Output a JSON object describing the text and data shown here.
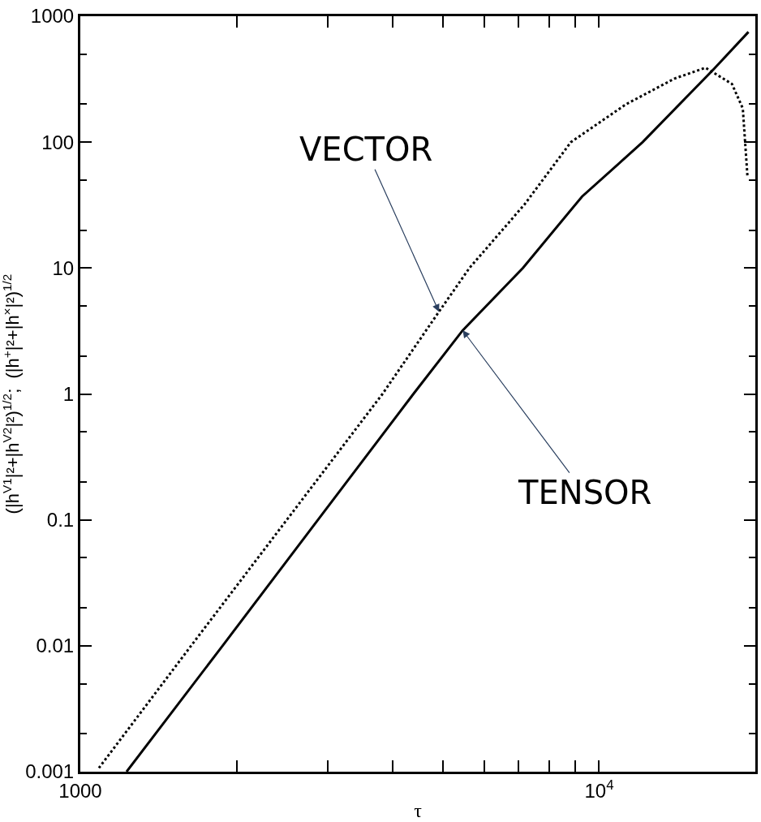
{
  "chart_data": {
    "type": "line",
    "xlabel": "τ",
    "ylabel": "(|h$^{V1}$|²+|h$^{V2}$|²)$^{1/2}$;  (|h$^{+}$|²+|h$^{×}$|²)$^{1/2}$",
    "log": "xy",
    "marker": "none",
    "xlim": [
      1000,
      20000
    ],
    "ylim": [
      0.001,
      1000
    ],
    "xticks": [
      1000,
      {
        "value": 2000,
        "label": null
      },
      {
        "value": 3000,
        "label": null
      },
      {
        "value": 4000,
        "label": null
      },
      {
        "value": 5000,
        "label": null
      },
      {
        "value": 6000,
        "label": null
      },
      {
        "value": 7000,
        "label": null
      },
      {
        "value": 8000,
        "label": null
      },
      {
        "value": 9000,
        "label": null
      },
      {
        "value": 10000,
        "label": "10$^{4}$"
      }
    ],
    "yticks": [
      0.001,
      0.01,
      0.1,
      1,
      10,
      100,
      1000
    ],
    "series": [
      {
        "color": "#000000",
        "line_style": "dotted",
        "x": [
          1086,
          1635,
          2500,
          3823,
          4912,
          5623,
          7180,
          8822,
          11270,
          13980,
          16030,
          18030,
          18920,
          19310
        ],
        "values": [
          0.00107,
          0.01,
          0.1,
          1,
          4.5,
          10,
          32,
          100,
          200,
          320,
          390,
          290,
          185,
          54
        ]
      },
      {
        "color": "#000000",
        "line_style": "solid",
        "x": [
          1228,
          1880,
          2871,
          4385,
          5457,
          7130,
          9270,
          12130,
          16670,
          19400
        ],
        "values": [
          0.001,
          0.01,
          0.1,
          1,
          3.2,
          10,
          37,
          100,
          384,
          750
        ]
      }
    ],
    "annotations": [
      {
        "text": "VECTOR",
        "x": 4912,
        "y": 4.5
      },
      {
        "text": "TENSOR",
        "x": 5457,
        "y": 3.2
      }
    ]
  }
}
